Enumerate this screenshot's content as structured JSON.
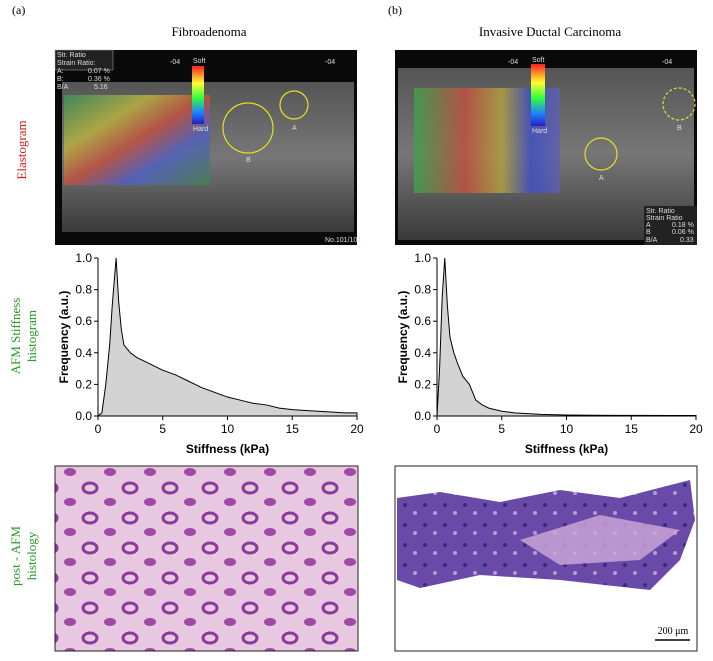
{
  "panel_labels": [
    "(a)",
    "(b)"
  ],
  "column_titles": [
    "Fibroadenoma",
    "Invasive Ductal Carcinoma"
  ],
  "row_labels": [
    [
      "Elastogram"
    ],
    [
      "AFM Stiffness",
      "histogram"
    ],
    [
      "post - AFM",
      "histology"
    ]
  ],
  "elastograms": [
    {
      "texts": [
        "Str. Ratio",
        "Strain Ratio:",
        "A:",
        "0.07 %",
        "B:",
        "0.36 %",
        "B/A",
        "5.16",
        "-04",
        "Soft",
        "Hard",
        "-04",
        "No.101/101",
        "A",
        "B"
      ]
    },
    {
      "texts": [
        "-04",
        "Soft",
        "Hard",
        "-04",
        "Str. Ratio",
        "Strain Ratio",
        "A",
        "0.18 %",
        "B",
        "0.06 %",
        "B/A",
        "0.33",
        "A",
        "B"
      ]
    }
  ],
  "scale_bar": "200 μm",
  "chart_data": [
    {
      "type": "area",
      "color": "#d3d3d3",
      "line_color": "#000000",
      "x_label": "Stiffness (kPa)",
      "y_label": "Frequency (a.u.)",
      "x": [
        0,
        0.3,
        0.6,
        0.9,
        1.1,
        1.3,
        1.4,
        1.6,
        1.8,
        2,
        2.5,
        3,
        3.5,
        4,
        4.5,
        5,
        6,
        7,
        8,
        9,
        10,
        11,
        12,
        13,
        14,
        15,
        16,
        17,
        18,
        19,
        20
      ],
      "values": [
        0,
        0.02,
        0.2,
        0.45,
        0.7,
        0.9,
        1.0,
        0.72,
        0.55,
        0.45,
        0.4,
        0.37,
        0.35,
        0.33,
        0.31,
        0.29,
        0.26,
        0.22,
        0.18,
        0.15,
        0.12,
        0.1,
        0.08,
        0.07,
        0.05,
        0.04,
        0.035,
        0.03,
        0.025,
        0.02,
        0.02
      ],
      "xlim": [
        0,
        20
      ],
      "ylim": [
        0,
        1
      ],
      "xticks": [
        0,
        5,
        10,
        15,
        20
      ],
      "yticks": [
        {
          "value": 0,
          "label": "0.0"
        },
        0.2,
        0.4,
        0.6,
        0.8,
        {
          "value": 1,
          "label": "1.0"
        }
      ]
    },
    {
      "type": "area",
      "color": "#d3d3d3",
      "line_color": "#000000",
      "x_label": "Stiffness (kPa)",
      "y_label": "Frequency (a.u.)",
      "x": [
        0,
        0.2,
        0.4,
        0.6,
        0.8,
        1,
        1.3,
        1.6,
        2,
        2.5,
        3,
        3.5,
        4,
        5,
        6,
        7,
        8,
        10,
        12,
        14,
        16,
        18,
        20
      ],
      "values": [
        0,
        0.3,
        0.75,
        1.0,
        0.7,
        0.5,
        0.4,
        0.33,
        0.25,
        0.2,
        0.1,
        0.07,
        0.05,
        0.03,
        0.02,
        0.015,
        0.01,
        0.006,
        0.005,
        0.004,
        0.004,
        0.003,
        0.003
      ],
      "xlim": [
        0,
        20
      ],
      "ylim": [
        0,
        1
      ],
      "xticks": [
        0,
        5,
        10,
        15,
        20
      ],
      "yticks": [
        {
          "value": 0,
          "label": "0.0"
        },
        0.2,
        0.4,
        0.6,
        0.8,
        {
          "value": 1,
          "label": "1.0"
        }
      ]
    }
  ]
}
